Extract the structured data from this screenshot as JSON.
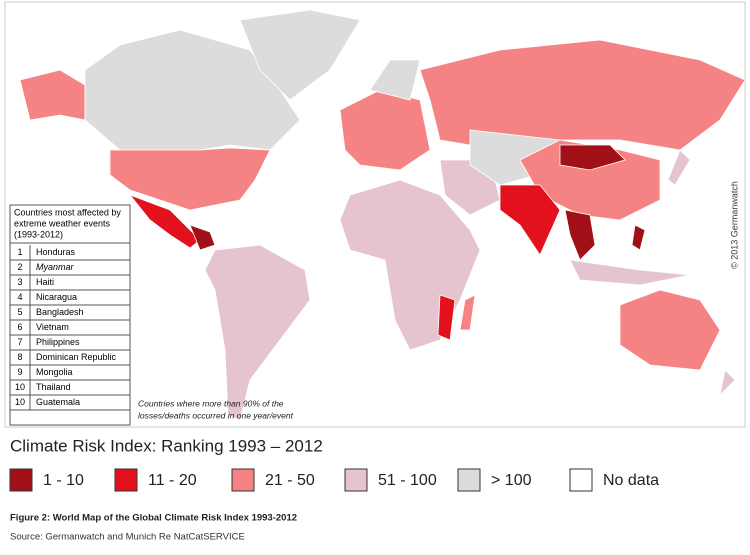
{
  "map": {
    "copyright": "© 2013 Germanwatch",
    "note": [
      "Countries where more than 90% of the",
      "losses/deaths occurred in one year/event"
    ]
  },
  "table": {
    "header": [
      "Countries most affected by",
      "extreme weather events",
      "(1993-2012)"
    ],
    "rows": [
      [
        1,
        "Honduras"
      ],
      [
        2,
        "Myanmar"
      ],
      [
        3,
        "Haiti"
      ],
      [
        4,
        "Nicaragua"
      ],
      [
        5,
        "Bangladesh"
      ],
      [
        6,
        "Vietnam"
      ],
      [
        7,
        "Philippines"
      ],
      [
        8,
        "Dominican Republic"
      ],
      [
        9,
        "Mongolia"
      ],
      [
        10,
        "Thailand"
      ],
      [
        10,
        "Guatemala"
      ]
    ]
  },
  "legend": {
    "title": "Climate Risk Index: Ranking 1993 – 2012",
    "items": [
      {
        "label": "1 - 10",
        "color": "#a11016"
      },
      {
        "label": "11 - 20",
        "color": "#e3101d"
      },
      {
        "label": "21 - 50",
        "color": "#f68383"
      },
      {
        "label": "51 - 100",
        "color": "#e6c4cf"
      },
      {
        "label": "> 100",
        "color": "#dcdcdc"
      },
      {
        "label": "No data",
        "color": "#ffffff"
      }
    ]
  },
  "caption": "Figure 2: World Map of the Global Climate Risk Index 1993-2012",
  "source": "Source: Germanwatch and Munich Re NatCatSERVICE"
}
